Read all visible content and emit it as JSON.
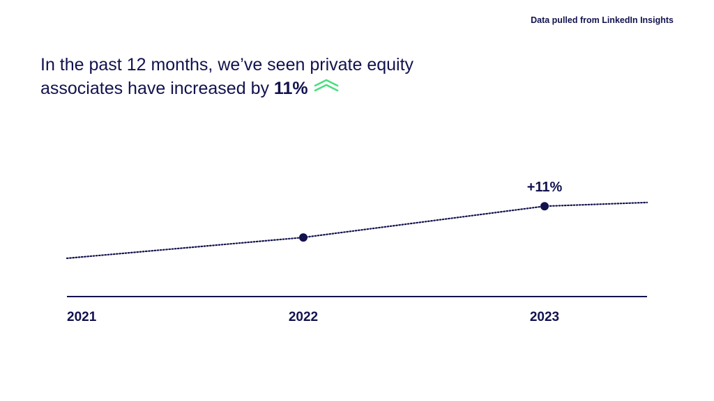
{
  "source_note": "Data pulled from LinkedIn Insights",
  "headline": {
    "text_before": "In the past 12 months, we’ve seen private equity associates have increased by ",
    "highlight": "11%",
    "trend_icon": "double-chevron-up-icon",
    "trend_icon_color": "#4ade80"
  },
  "colors": {
    "primary": "#12124f",
    "accent": "#4ade80"
  },
  "chart_data": {
    "type": "line",
    "style": "dotted",
    "x": [
      "2021",
      "2022",
      "2023"
    ],
    "series": [
      {
        "values": [
          0.0,
          4.4,
          11.0
        ],
        "markers_at": [
          "2022",
          "2023"
        ]
      }
    ],
    "annotations": [
      {
        "x": "2023",
        "text": "+11%"
      }
    ],
    "grid": false,
    "legend": "none"
  }
}
